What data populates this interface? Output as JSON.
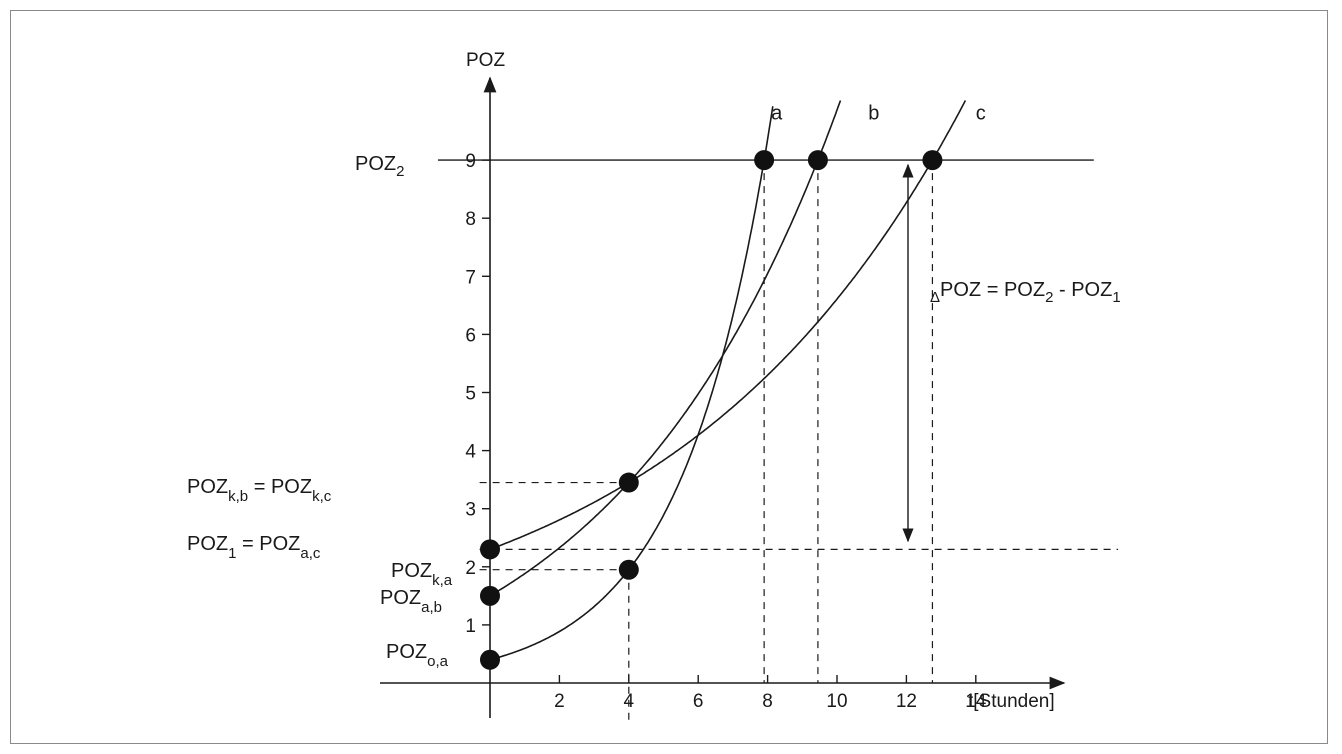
{
  "chart_data": {
    "type": "line",
    "title": "",
    "xlabel": "t[Stunden]",
    "ylabel": "POZ",
    "xlim": [
      0,
      16.5
    ],
    "ylim": [
      0,
      9.5
    ],
    "x_ticks": [
      2,
      4,
      6,
      8,
      10,
      12,
      14
    ],
    "y_ticks": [
      1,
      2,
      3,
      4,
      5,
      6,
      7,
      8,
      9
    ],
    "grid": false,
    "series": [
      {
        "name": "a",
        "points": [
          [
            0,
            0.4
          ],
          [
            4,
            1.95
          ],
          [
            7.9,
            9.0
          ]
        ],
        "label_point": [
          8.1,
          9.7
        ]
      },
      {
        "name": "b",
        "points": [
          [
            0,
            1.5
          ],
          [
            4,
            3.45
          ],
          [
            9.45,
            9.0
          ]
        ],
        "label_point": [
          10.9,
          9.7
        ]
      },
      {
        "name": "c",
        "points": [
          [
            0,
            2.3
          ],
          [
            4,
            3.45
          ],
          [
            12.75,
            9.0
          ]
        ],
        "label_point": [
          14.0,
          9.7
        ]
      }
    ],
    "markers": [
      [
        0,
        0.4
      ],
      [
        0,
        1.5
      ],
      [
        0,
        2.3
      ],
      [
        4,
        1.95
      ],
      [
        4,
        3.45
      ],
      [
        7.9,
        9.0
      ],
      [
        9.45,
        9.0
      ],
      [
        12.75,
        9.0
      ]
    ],
    "reference_lines": {
      "horizontal_solid": [
        9.0
      ],
      "horizontal_dashed": [
        {
          "y": 3.45,
          "x_from": -0.3,
          "x_to": 4
        },
        {
          "y": 2.3,
          "x_from": -0.3,
          "x_to": 18.1
        },
        {
          "y": 1.95,
          "x_from": -0.3,
          "x_to": 4
        }
      ],
      "vertical_dashed": [
        {
          "x": 4,
          "y_from": 1.95,
          "y_to": -0.7
        },
        {
          "x": 7.9,
          "y_from": 9.0,
          "y_to": 0
        },
        {
          "x": 9.45,
          "y_from": 9.0,
          "y_to": 0
        },
        {
          "x": 12.75,
          "y_from": 9.0,
          "y_to": 0
        }
      ]
    },
    "annotations": [
      {
        "base": "POZ",
        "sub": "2",
        "target": "y=9"
      },
      {
        "base": "POZ",
        "sub": "k,b",
        "suffix": " = ",
        "base2": "POZ",
        "sub2": "k,c",
        "target": "y=3.45"
      },
      {
        "base": "POZ",
        "sub": "1",
        "suffix": " = ",
        "base2": "POZ",
        "sub2": "a,c",
        "target": "y=2.3"
      },
      {
        "base": "POZ",
        "sub": "k,a",
        "target": "y=1.95"
      },
      {
        "base": "POZ",
        "sub": "a,b",
        "target": "y=1.5"
      },
      {
        "base": "POZ",
        "sub": "o,a",
        "target": "y=0.4"
      },
      {
        "prefix": "Δ",
        "base": "POZ",
        "suffix": " = ",
        "base2": "POZ",
        "sub2": "2",
        "suffix2": " - ",
        "base3": "POZ",
        "sub3": "1",
        "target": "arrow between y=2.3 and y=9"
      }
    ]
  }
}
